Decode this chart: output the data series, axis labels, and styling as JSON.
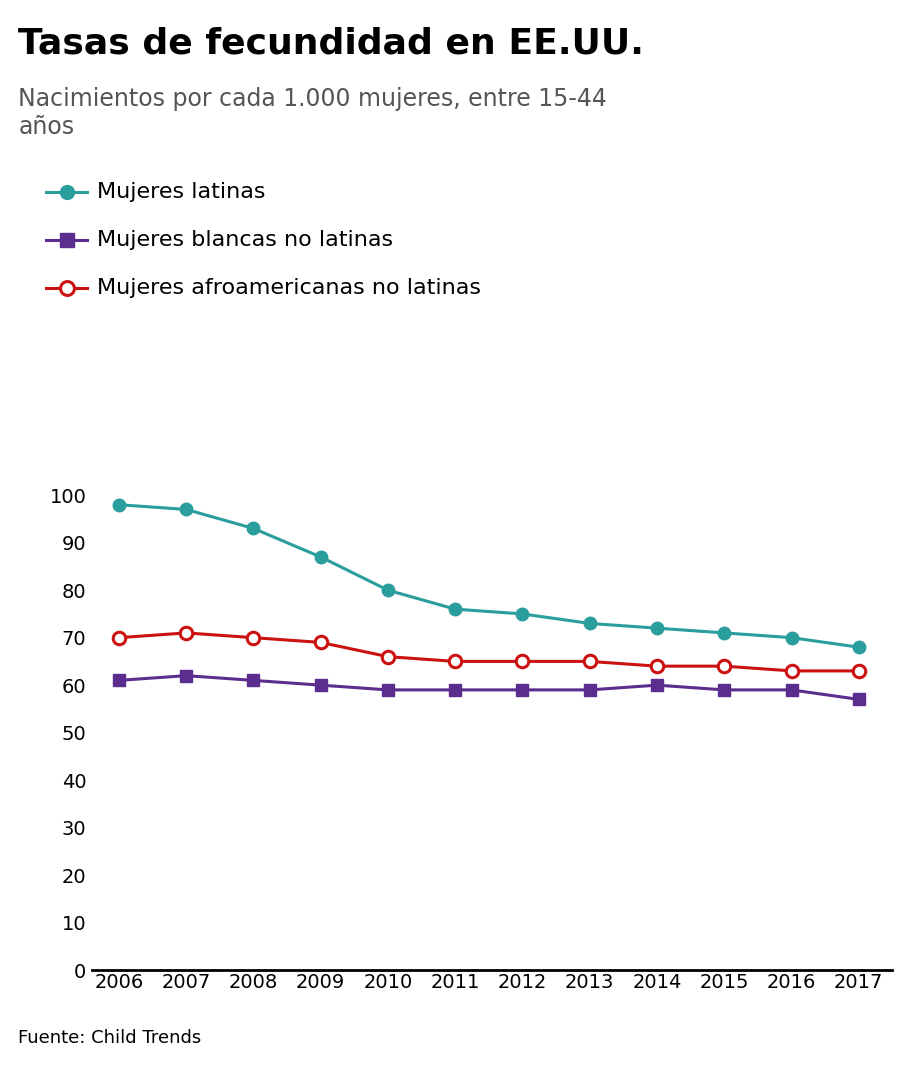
{
  "title": "Tasas de fecundidad en EE.UU.",
  "subtitle": "Nacimientos por cada 1.000 mujeres, entre 15-44\naños",
  "source": "Fuente: Child Trends",
  "years": [
    2006,
    2007,
    2008,
    2009,
    2010,
    2011,
    2012,
    2013,
    2014,
    2015,
    2016,
    2017
  ],
  "latinas": [
    98,
    97,
    93,
    87,
    80,
    76,
    75,
    73,
    72,
    71,
    70,
    68
  ],
  "blancas": [
    61,
    62,
    61,
    60,
    59,
    59,
    59,
    59,
    60,
    59,
    59,
    57
  ],
  "afroamericanas": [
    70,
    71,
    70,
    69,
    66,
    65,
    65,
    65,
    64,
    64,
    63,
    63
  ],
  "color_latinas": "#2a9d9d",
  "color_blancas": "#5b2d8e",
  "color_afroamericanas": "#cc1111",
  "background_color": "#ffffff",
  "ylim": [
    0,
    110
  ],
  "yticks": [
    0,
    10,
    20,
    30,
    40,
    50,
    60,
    70,
    80,
    90,
    100
  ],
  "legend_latinas": "Mujeres latinas",
  "legend_blancas": "Mujeres blancas no latinas",
  "legend_afroamericanas": "Mujeres afroamericanas no latinas",
  "title_fontsize": 26,
  "subtitle_fontsize": 17,
  "legend_fontsize": 16,
  "tick_fontsize": 14,
  "source_fontsize": 13,
  "bbc_fontsize": 14,
  "footer_bg": "#e0e0e0"
}
